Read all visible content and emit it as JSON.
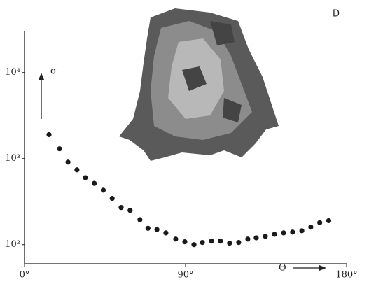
{
  "chart_data": {
    "type": "scatter",
    "panel_label": "D",
    "y_label": "σ",
    "x_label": "Θ",
    "x": [
      13.7,
      19.6,
      24.3,
      29.3,
      34,
      39,
      44,
      49,
      54,
      59,
      64.5,
      69,
      74,
      79,
      84.5,
      89.6,
      94.7,
      99.4,
      104.5,
      109.5,
      114.6,
      119.7,
      124.8,
      129.5,
      134.6,
      139.7,
      144.8,
      149.8,
      155,
      160,
      165,
      170
    ],
    "values": [
      1900,
      1300,
      910,
      740,
      600,
      515,
      430,
      345,
      270,
      250,
      195,
      155,
      150,
      137,
      116,
      108,
      100,
      106,
      110,
      110,
      104,
      106,
      116,
      120,
      125,
      132,
      137,
      140,
      145,
      160,
      180,
      190
    ],
    "color": "#1a1a1a",
    "log_y": true,
    "xlim": [
      0,
      180
    ],
    "xticks": [
      {
        "value": 0,
        "label": "0°"
      },
      {
        "value": 90,
        "label": "90°"
      },
      {
        "value": 180,
        "label": "180°"
      }
    ],
    "ylim": [
      60,
      30000
    ],
    "yticks": [
      {
        "value": 100,
        "label": "10²"
      },
      {
        "value": 1000,
        "label": "10³"
      },
      {
        "value": 10000,
        "label": "10⁴"
      }
    ]
  }
}
